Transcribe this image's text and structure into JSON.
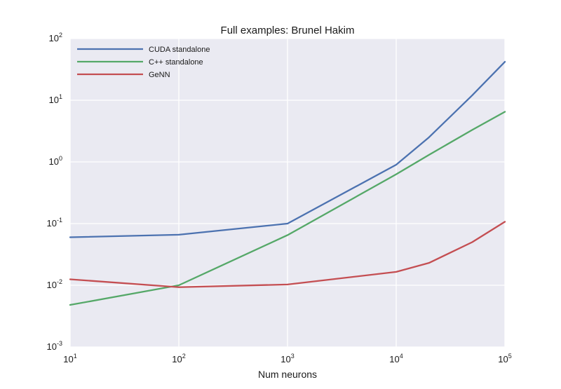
{
  "chart_data": {
    "type": "line",
    "title": "Full examples: Brunel Hakim",
    "xlabel": "Num neurons",
    "ylabel": "",
    "xscale": "log",
    "yscale": "log",
    "xlim": [
      10,
      100000
    ],
    "ylim": [
      0.001,
      100
    ],
    "grid": true,
    "legend_position": "top-left",
    "x_ticks": [
      {
        "value": 10,
        "base": "10",
        "exp": "1"
      },
      {
        "value": 100,
        "base": "10",
        "exp": "2"
      },
      {
        "value": 1000,
        "base": "10",
        "exp": "3"
      },
      {
        "value": 10000,
        "base": "10",
        "exp": "4"
      },
      {
        "value": 100000,
        "base": "10",
        "exp": "5"
      }
    ],
    "y_ticks": [
      {
        "value": 0.001,
        "base": "10",
        "exp": "-3"
      },
      {
        "value": 0.01,
        "base": "10",
        "exp": "-2"
      },
      {
        "value": 0.1,
        "base": "10",
        "exp": "-1"
      },
      {
        "value": 1,
        "base": "10",
        "exp": "0"
      },
      {
        "value": 10,
        "base": "10",
        "exp": "1"
      },
      {
        "value": 100,
        "base": "10",
        "exp": "2"
      }
    ],
    "series": [
      {
        "name": "CUDA standalone",
        "color": "#4c72b0",
        "x": [
          10,
          100,
          1000,
          10000,
          20000,
          50000,
          100000
        ],
        "y": [
          0.06,
          0.066,
          0.1,
          0.9,
          2.5,
          12,
          42
        ]
      },
      {
        "name": "C++ standalone",
        "color": "#55a868",
        "x": [
          10,
          100,
          1000,
          10000,
          20000,
          50000,
          100000
        ],
        "y": [
          0.0048,
          0.01,
          0.065,
          0.63,
          1.3,
          3.3,
          6.5
        ]
      },
      {
        "name": "GeNN",
        "color": "#c44e52",
        "x": [
          10,
          100,
          1000,
          10000,
          20000,
          50000,
          100000
        ],
        "y": [
          0.0125,
          0.0093,
          0.0103,
          0.0165,
          0.023,
          0.05,
          0.107
        ]
      }
    ],
    "colors": {
      "plot_background": "#eaeaf2",
      "grid": "#ffffff"
    }
  }
}
